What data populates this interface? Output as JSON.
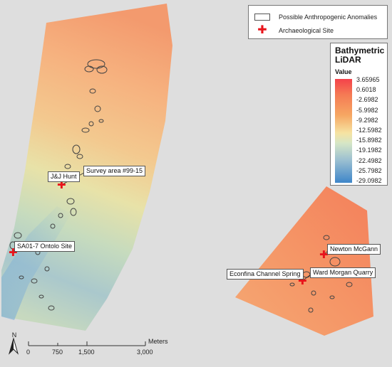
{
  "legend": {
    "anomalies_label": "Possible Anthropogenic Anomalies",
    "site_label": "Archaeological Site"
  },
  "bathymetry": {
    "title_line1": "Bathymetric",
    "title_line2": "LiDAR",
    "value_label": "Value",
    "ticks": [
      "3.65965",
      "0.6018",
      "-2.6982",
      "-5.9982",
      "-9.2982",
      "-12.5982",
      "-15.8982",
      "-19.1982",
      "-22.4982",
      "-25.7982",
      "-29.0982"
    ]
  },
  "sites": {
    "jj_hunt": "J&J Hunt",
    "survey_area": "Survey area #99-15",
    "ontolo": "SA01-7 Ontolo Site",
    "newton": "Newton McGann",
    "econfina": "Econfina Channel Spring",
    "ward_morgan": "Ward Morgan Quarry"
  },
  "scale_bar": {
    "unit": "Meters",
    "labels": [
      "0",
      "750",
      "1,500",
      "3,000"
    ]
  },
  "north_arrow": {
    "letter": "N"
  },
  "colors": {
    "background": "#dedede",
    "site_marker": "#e8141b",
    "deep": "#3e86c9",
    "shallow": "#f4424a"
  }
}
